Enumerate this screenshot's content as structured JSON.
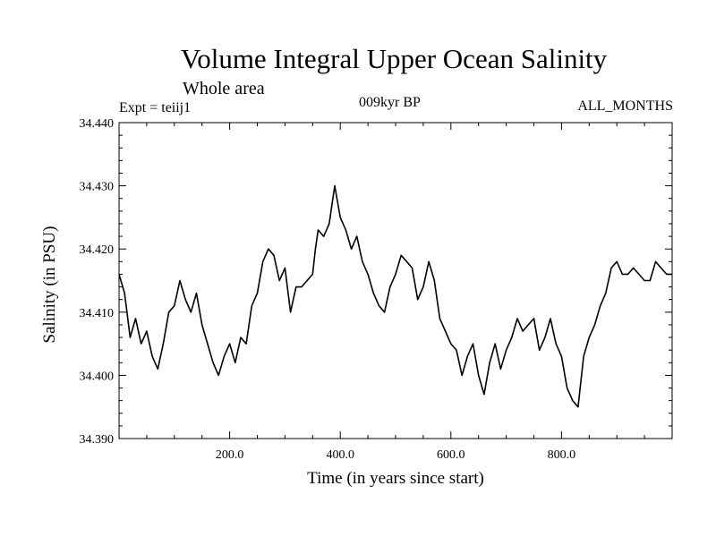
{
  "header": {
    "title": "Volume Integral Upper Ocean Salinity",
    "subtitle": "Whole area",
    "experiment": "Expt = teiij1",
    "period": "009kyr BP",
    "months": "ALL_MONTHS"
  },
  "chart_data": {
    "type": "line",
    "title": "Volume Integral Upper Ocean Salinity",
    "subtitle": "Whole area",
    "xlabel": "Time (in years since start)",
    "ylabel": "Salinity (in PSU)",
    "xlim": [
      0,
      1000
    ],
    "ylim": [
      34.39,
      34.44
    ],
    "xticks": [
      200,
      400,
      600,
      800
    ],
    "xtick_labels": [
      "200.0",
      "400.0",
      "600.0",
      "800.0"
    ],
    "yticks": [
      34.39,
      34.4,
      34.41,
      34.42,
      34.43,
      34.44
    ],
    "ytick_labels": [
      "34.390",
      "34.400",
      "34.410",
      "34.420",
      "34.430",
      "34.440"
    ],
    "grid": false,
    "series": [
      {
        "color": "#000000",
        "x": [
          0,
          10,
          20,
          30,
          40,
          50,
          60,
          70,
          80,
          90,
          100,
          110,
          120,
          130,
          140,
          150,
          160,
          170,
          180,
          190,
          200,
          210,
          220,
          230,
          240,
          250,
          260,
          270,
          280,
          290,
          300,
          310,
          320,
          330,
          340,
          350,
          355,
          360,
          370,
          380,
          390,
          400,
          410,
          420,
          430,
          440,
          450,
          460,
          470,
          480,
          490,
          500,
          510,
          520,
          530,
          540,
          550,
          560,
          570,
          580,
          590,
          600,
          610,
          620,
          630,
          640,
          650,
          660,
          670,
          680,
          690,
          700,
          710,
          720,
          730,
          740,
          750,
          760,
          770,
          780,
          790,
          800,
          810,
          820,
          830,
          840,
          850,
          860,
          870,
          880,
          890,
          900,
          910,
          920,
          930,
          940,
          950,
          960,
          970,
          980,
          990,
          1000
        ],
        "y": [
          34.416,
          34.413,
          34.406,
          34.409,
          34.405,
          34.407,
          34.403,
          34.401,
          34.405,
          34.41,
          34.411,
          34.415,
          34.412,
          34.41,
          34.413,
          34.408,
          34.405,
          34.402,
          34.4,
          34.403,
          34.405,
          34.402,
          34.406,
          34.405,
          34.411,
          34.413,
          34.418,
          34.42,
          34.419,
          34.415,
          34.417,
          34.41,
          34.414,
          34.414,
          34.415,
          34.416,
          34.42,
          34.423,
          34.422,
          34.424,
          34.43,
          34.425,
          34.423,
          34.42,
          34.422,
          34.418,
          34.416,
          34.413,
          34.411,
          34.41,
          34.414,
          34.416,
          34.419,
          34.418,
          34.417,
          34.412,
          34.414,
          34.418,
          34.415,
          34.409,
          34.407,
          34.405,
          34.404,
          34.4,
          34.403,
          34.405,
          34.4,
          34.397,
          34.402,
          34.405,
          34.401,
          34.404,
          34.406,
          34.409,
          34.407,
          34.408,
          34.409,
          34.404,
          34.406,
          34.409,
          34.405,
          34.403,
          34.398,
          34.396,
          34.395,
          34.403,
          34.406,
          34.408,
          34.411,
          34.413,
          34.417,
          34.418,
          34.416,
          34.416,
          34.417,
          34.416,
          34.415,
          34.415,
          34.418,
          34.417,
          34.416,
          34.416
        ]
      }
    ]
  }
}
